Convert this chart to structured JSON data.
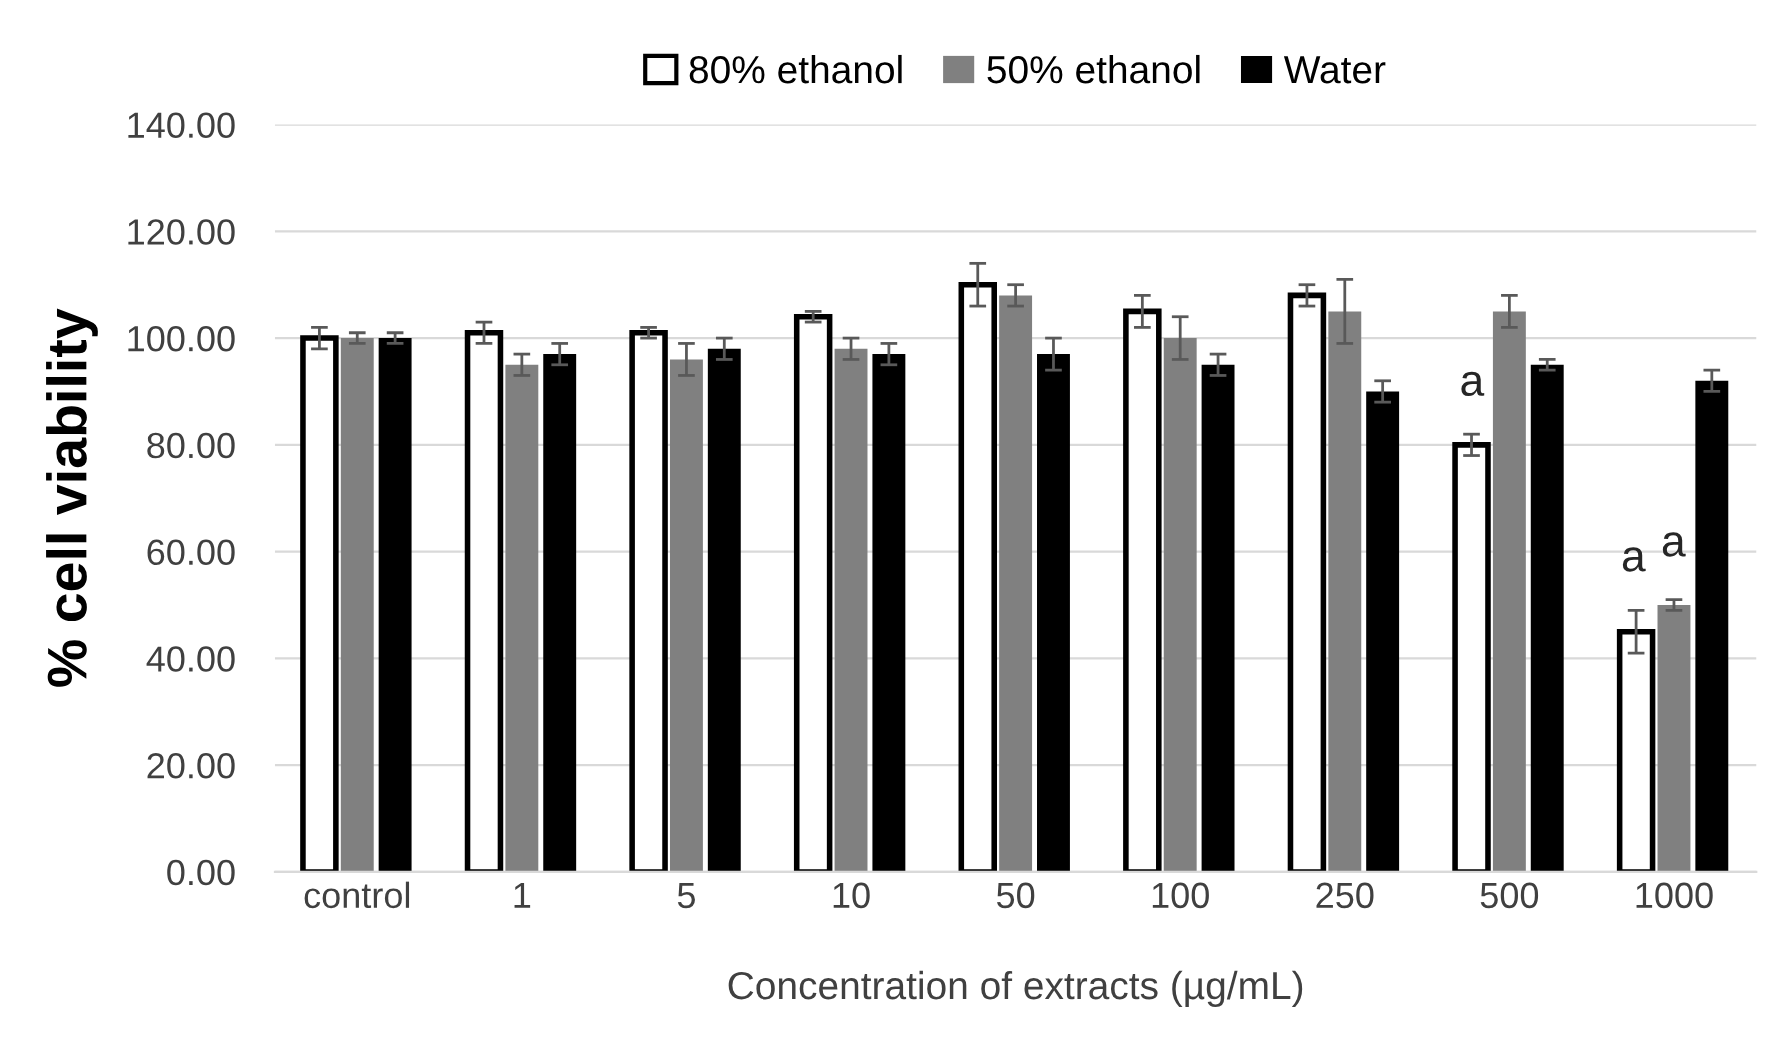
{
  "chart_data": {
    "type": "bar",
    "xlabel": "Concentration of extracts (µg/mL)",
    "ylabel": "% cell viability",
    "categories": [
      "control",
      "1",
      "5",
      "10",
      "50",
      "100",
      "250",
      "500",
      "1000"
    ],
    "series": [
      {
        "name": "80% ethanol",
        "color": "#ffffff",
        "values": [
          100,
          101,
          101,
          104,
          110,
          105,
          108,
          80,
          45
        ],
        "errors": [
          2,
          2,
          1,
          1,
          4,
          3,
          2,
          2,
          4
        ]
      },
      {
        "name": "50% ethanol",
        "color": "#808080",
        "values": [
          100,
          95,
          96,
          98,
          108,
          100,
          105,
          105,
          50
        ],
        "errors": [
          1,
          2,
          3,
          2,
          2,
          4,
          6,
          3,
          1
        ]
      },
      {
        "name": "Water",
        "color": "#000000",
        "values": [
          100,
          97,
          98,
          97,
          97,
          95,
          90,
          95,
          92
        ],
        "errors": [
          1,
          2,
          2,
          2,
          3,
          2,
          2,
          1,
          2
        ]
      }
    ],
    "ylim": [
      0,
      140
    ],
    "yticks": [
      {
        "value": 0,
        "label": "0.00"
      },
      {
        "value": 20,
        "label": "20.00"
      },
      {
        "value": 40,
        "label": "40.00"
      },
      {
        "value": 60,
        "label": "60.00"
      },
      {
        "value": 80,
        "label": "80.00"
      },
      {
        "value": 100,
        "label": "100.00"
      },
      {
        "value": 120,
        "label": "120.00"
      },
      {
        "value": 140,
        "label": "140.00"
      }
    ],
    "grid": "y",
    "legend": "top",
    "annotations": [
      "a",
      "a",
      "a"
    ]
  }
}
